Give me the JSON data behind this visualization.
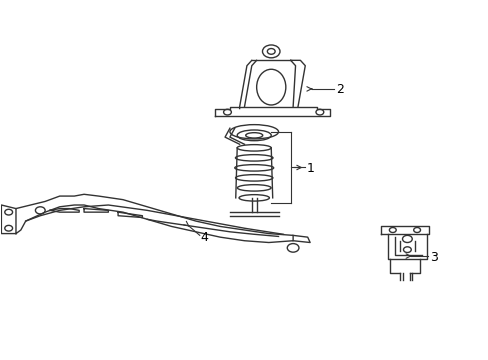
{
  "title": "",
  "background_color": "#ffffff",
  "line_color": "#333333",
  "label_color": "#000000",
  "fig_width": 4.89,
  "fig_height": 3.6,
  "dpi": 100
}
